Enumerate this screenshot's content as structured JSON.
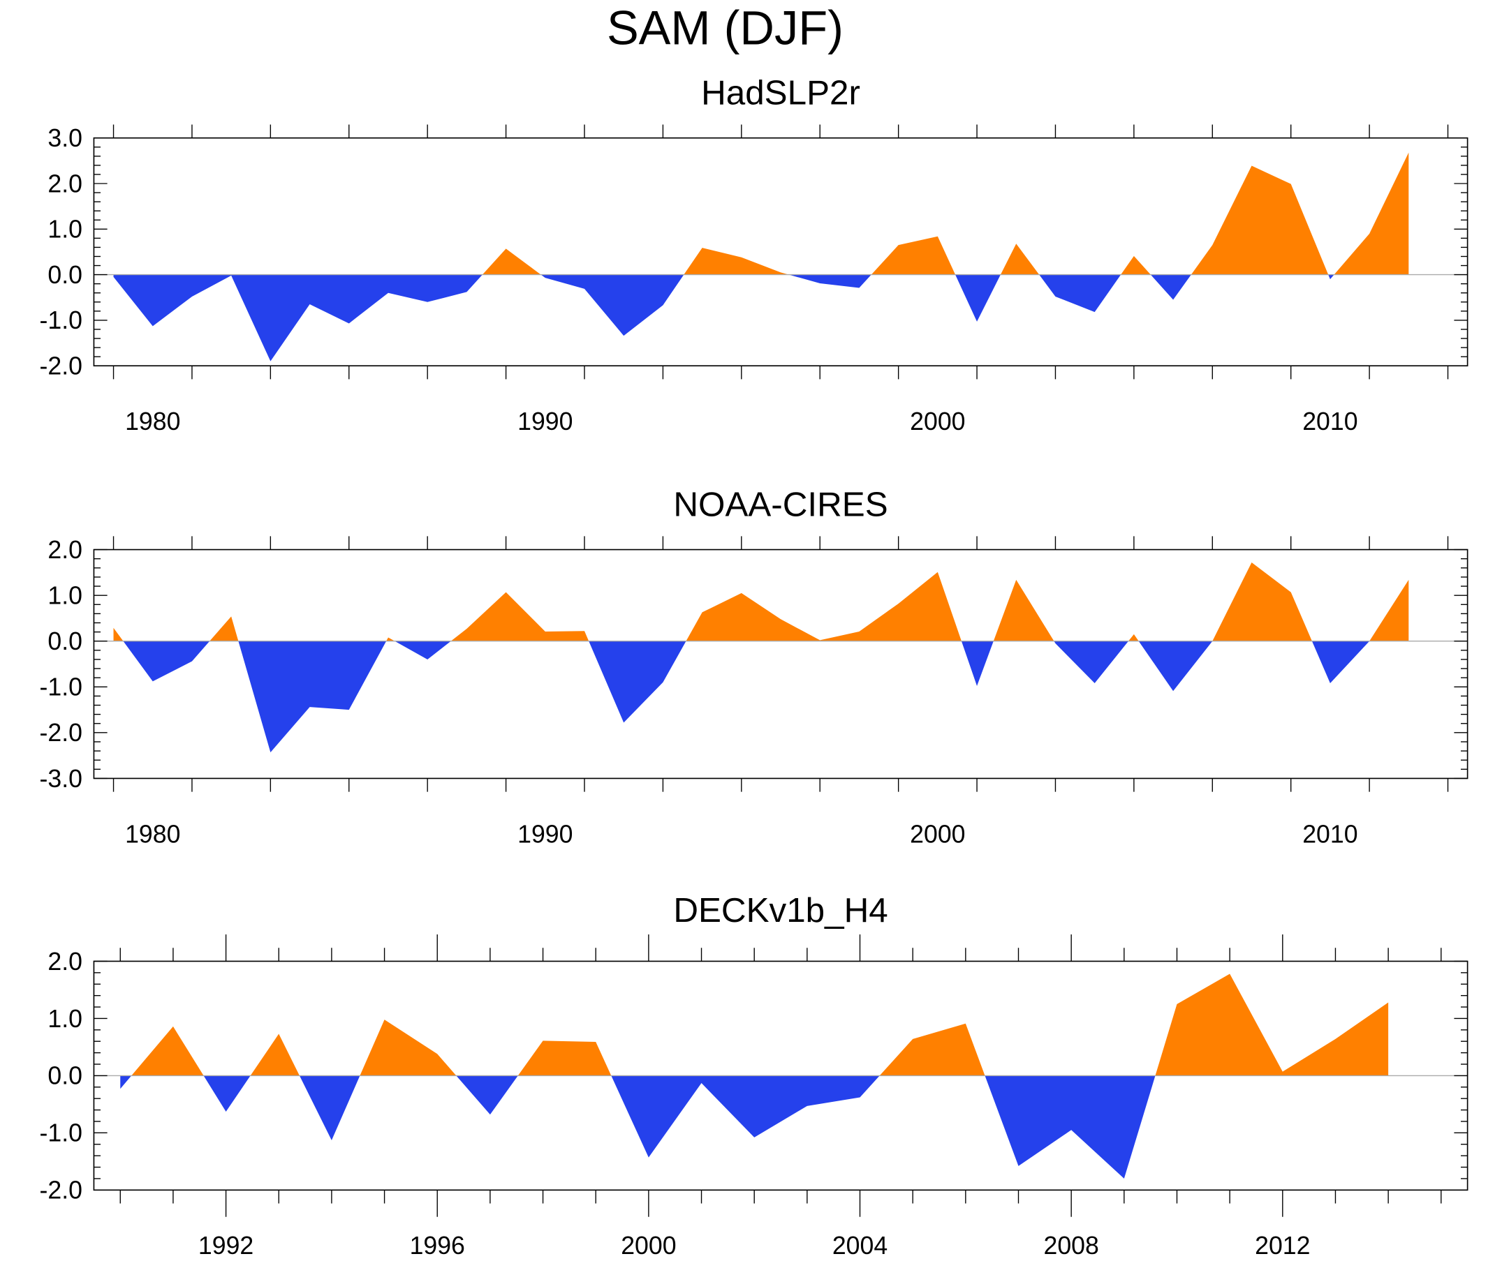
{
  "chart_data": {
    "type": "area",
    "title": "SAM (DJF)",
    "colors": {
      "positive": "#FF8000",
      "negative": "#2541EC",
      "zero_line": "#AAAAAA"
    },
    "panels": [
      {
        "subtitle": "HadSLP2r",
        "xlim": [
          1978.5,
          2013.5
        ],
        "ylim": [
          -2.0,
          3.0
        ],
        "x_major": [
          1980,
          1990,
          2000,
          2010
        ],
        "x_tick_labels": [
          "1980",
          "1990",
          "2000",
          "2010"
        ],
        "x_minor_step": 2,
        "y_ticks": [
          3.0,
          2.0,
          1.0,
          0.0,
          -1.0,
          -2.0
        ],
        "y_tick_labels": [
          "3.0",
          "2.0",
          "1.0",
          "0.0",
          "-1.0",
          "-2.0"
        ],
        "x": [
          1979,
          1980,
          1981,
          1982,
          1983,
          1984,
          1985,
          1986,
          1987,
          1988,
          1989,
          1990,
          1991,
          1992,
          1993,
          1994,
          1995,
          1996,
          1997,
          1998,
          1999,
          2000,
          2001,
          2002,
          2003,
          2004,
          2005,
          2006,
          2007,
          2008,
          2009,
          2010,
          2011,
          2012
        ],
        "values": [
          -0.05,
          -1.13,
          -0.48,
          -0.02,
          -1.9,
          -0.65,
          -1.07,
          -0.4,
          -0.6,
          -0.38,
          0.57,
          -0.07,
          -0.31,
          -1.34,
          -0.67,
          0.59,
          0.38,
          0.05,
          -0.19,
          -0.29,
          0.65,
          0.84,
          -1.03,
          0.68,
          -0.48,
          -0.82,
          0.41,
          -0.55,
          0.65,
          2.39,
          1.99,
          -0.1,
          0.9,
          2.68
        ]
      },
      {
        "subtitle": "NOAA-CIRES",
        "xlim": [
          1978.5,
          2013.5
        ],
        "ylim": [
          -3.0,
          2.0
        ],
        "x_major": [
          1980,
          1990,
          2000,
          2010
        ],
        "x_tick_labels": [
          "1980",
          "1990",
          "2000",
          "2010"
        ],
        "x_minor_step": 2,
        "y_ticks": [
          2.0,
          1.0,
          0.0,
          -1.0,
          -2.0,
          -3.0
        ],
        "y_tick_labels": [
          "2.0",
          "1.0",
          "0.0",
          "-1.0",
          "-2.0",
          "-3.0"
        ],
        "x": [
          1979,
          1980,
          1981,
          1982,
          1983,
          1984,
          1985,
          1986,
          1987,
          1988,
          1989,
          1990,
          1991,
          1992,
          1993,
          1994,
          1995,
          1996,
          1997,
          1998,
          1999,
          2000,
          2001,
          2002,
          2003,
          2004,
          2005,
          2006,
          2007,
          2008,
          2009,
          2010,
          2011,
          2012
        ],
        "values": [
          0.29,
          -0.88,
          -0.44,
          0.54,
          -2.43,
          -1.44,
          -1.5,
          0.08,
          -0.4,
          0.27,
          1.07,
          0.21,
          0.22,
          -1.78,
          -0.9,
          0.63,
          1.05,
          0.48,
          0.02,
          0.21,
          0.82,
          1.51,
          -0.98,
          1.34,
          -0.05,
          -0.92,
          0.15,
          -1.09,
          0.0,
          1.72,
          1.07,
          -0.92,
          0.0,
          1.34
        ]
      },
      {
        "subtitle": "DECKv1b_H4",
        "xlim": [
          1989.5,
          2015.5
        ],
        "ylim": [
          -2.0,
          2.0
        ],
        "x_major": [
          1992,
          1996,
          2000,
          2004,
          2008,
          2012
        ],
        "x_tick_labels": [
          "1992",
          "1996",
          "2000",
          "2004",
          "2008",
          "2012"
        ],
        "x_minor_step": 1,
        "y_ticks": [
          2.0,
          1.0,
          0.0,
          -1.0,
          -2.0
        ],
        "y_tick_labels": [
          "2.0",
          "1.0",
          "0.0",
          "-1.0",
          "-2.0"
        ],
        "x": [
          1990,
          1991,
          1992,
          1993,
          1994,
          1995,
          1996,
          1997,
          1998,
          1999,
          2000,
          2001,
          2002,
          2003,
          2004,
          2005,
          2006,
          2007,
          2008,
          2009,
          2010,
          2011,
          2012,
          2013,
          2014
        ],
        "values": [
          -0.23,
          0.86,
          -0.63,
          0.73,
          -1.13,
          0.98,
          0.38,
          -0.68,
          0.61,
          0.59,
          -1.43,
          -0.13,
          -1.08,
          -0.53,
          -0.38,
          0.64,
          0.91,
          -1.58,
          -0.95,
          -1.8,
          1.25,
          1.78,
          0.07,
          0.64,
          1.28
        ]
      }
    ]
  }
}
